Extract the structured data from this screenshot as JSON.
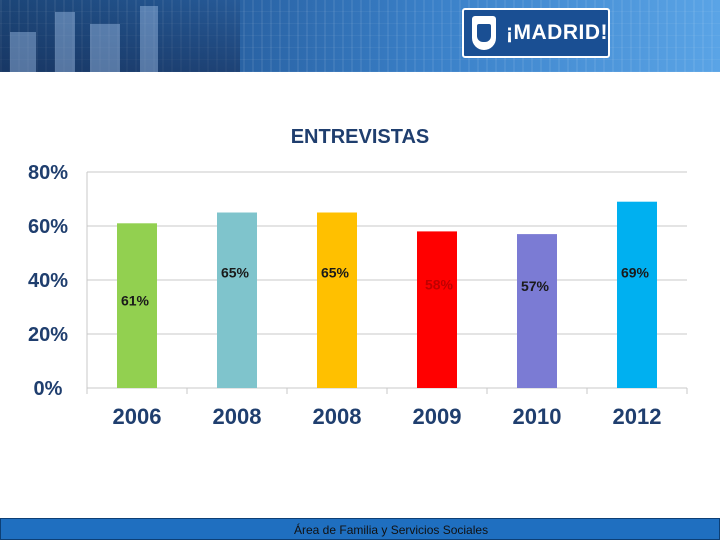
{
  "header": {
    "logo_text": "¡MADRID!"
  },
  "footer": {
    "text": "Área de Familia y Servicios Sociales"
  },
  "chart_data": {
    "type": "bar",
    "title": "ENTREVISTAS",
    "categories": [
      "2006",
      "2008",
      "2008",
      "2009",
      "2010",
      "2012"
    ],
    "values": [
      61,
      65,
      65,
      58,
      57,
      69
    ],
    "value_labels": [
      "61%",
      "65%",
      "65%",
      "58%",
      "57%",
      "69%"
    ],
    "colors": [
      "#92d050",
      "#7fc4cc",
      "#ffc000",
      "#ff0000",
      "#7b7bd4",
      "#00b0f0"
    ],
    "ylim": [
      0,
      80
    ],
    "yticks": [
      "0%",
      "20%",
      "40%",
      "60%",
      "80%"
    ],
    "ytick_values": [
      0,
      20,
      40,
      60,
      80
    ],
    "xlabel": "",
    "ylabel": "",
    "grid": true
  }
}
